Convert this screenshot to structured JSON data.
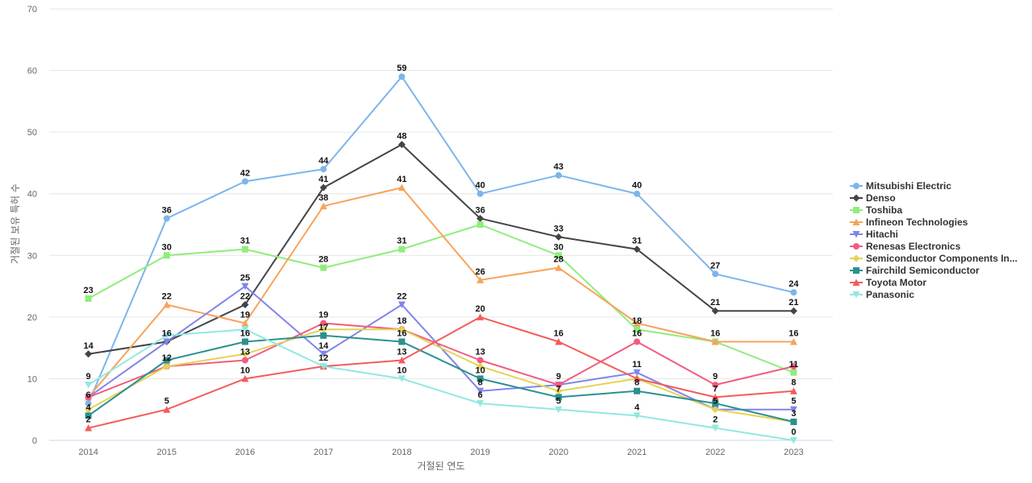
{
  "chart_data": {
    "type": "line",
    "title": "",
    "xlabel": "거절된 연도",
    "ylabel": "거절된 보유 특허 수",
    "x": [
      "2014",
      "2015",
      "2016",
      "2017",
      "2018",
      "2019",
      "2020",
      "2021",
      "2022",
      "2023"
    ],
    "ylim": [
      0,
      70
    ],
    "yticks": [
      0,
      10,
      20,
      30,
      40,
      50,
      60,
      70
    ],
    "grid": "horizontal",
    "legend_position": "right",
    "series": [
      {
        "name": "Mitsubishi Electric",
        "color": "#7cb5ec",
        "marker": "circle",
        "values": [
          6,
          36,
          42,
          44,
          59,
          40,
          43,
          40,
          27,
          24
        ]
      },
      {
        "name": "Denso",
        "color": "#434348",
        "marker": "diamond",
        "values": [
          14,
          16,
          22,
          41,
          48,
          36,
          33,
          31,
          21,
          21
        ]
      },
      {
        "name": "Toshiba",
        "color": "#90ed7d",
        "marker": "square",
        "values": [
          23,
          30,
          31,
          28,
          31,
          35,
          30,
          18,
          16,
          11
        ]
      },
      {
        "name": "Infineon Technologies",
        "color": "#f7a35c",
        "marker": "triangle",
        "values": [
          7,
          22,
          19,
          38,
          41,
          26,
          28,
          19,
          16,
          16
        ]
      },
      {
        "name": "Hitachi",
        "color": "#8085e9",
        "marker": "triangle-down",
        "values": [
          7,
          16,
          25,
          14,
          22,
          8,
          9,
          11,
          5,
          5
        ]
      },
      {
        "name": "Renesas Electronics",
        "color": "#f15c80",
        "marker": "circle",
        "values": [
          7,
          12,
          13,
          19,
          18,
          13,
          9,
          16,
          9,
          12
        ]
      },
      {
        "name": "Semiconductor Components In...",
        "color": "#e4d354",
        "marker": "diamond",
        "values": [
          5,
          12,
          14,
          18,
          18,
          12,
          8,
          10,
          5,
          3
        ]
      },
      {
        "name": "Fairchild Semiconductor",
        "color": "#2b908f",
        "marker": "square",
        "values": [
          4,
          13,
          16,
          17,
          16,
          10,
          7,
          8,
          6,
          3
        ]
      },
      {
        "name": "Toyota Motor",
        "color": "#f45b5b",
        "marker": "triangle",
        "values": [
          2,
          5,
          10,
          12,
          13,
          20,
          16,
          10,
          7,
          8
        ]
      },
      {
        "name": "Panasonic",
        "color": "#91e8e1",
        "marker": "triangle-down",
        "values": [
          9,
          17,
          18,
          12,
          10,
          6,
          5,
          4,
          2,
          0
        ]
      }
    ],
    "data_labels": [
      {
        "x": "2014",
        "text": "23",
        "value": 23
      },
      {
        "x": "2014",
        "text": "14",
        "value": 14
      },
      {
        "x": "2014",
        "text": "9",
        "value": 9
      },
      {
        "x": "2014",
        "text": "6",
        "value": 6
      },
      {
        "x": "2014",
        "text": "4",
        "value": 4
      },
      {
        "x": "2014",
        "text": "2",
        "value": 2
      },
      {
        "x": "2015",
        "text": "36",
        "value": 36
      },
      {
        "x": "2015",
        "text": "30",
        "value": 30
      },
      {
        "x": "2015",
        "text": "22",
        "value": 22
      },
      {
        "x": "2015",
        "text": "16",
        "value": 16
      },
      {
        "x": "2015",
        "text": "12",
        "value": 12
      },
      {
        "x": "2015",
        "text": "5",
        "value": 5
      },
      {
        "x": "2016",
        "text": "42",
        "value": 42
      },
      {
        "x": "2016",
        "text": "31",
        "value": 31
      },
      {
        "x": "2016",
        "text": "25",
        "value": 25
      },
      {
        "x": "2016",
        "text": "22",
        "value": 22
      },
      {
        "x": "2016",
        "text": "19",
        "value": 19
      },
      {
        "x": "2016",
        "text": "16",
        "value": 16
      },
      {
        "x": "2016",
        "text": "13",
        "value": 13
      },
      {
        "x": "2016",
        "text": "10",
        "value": 10
      },
      {
        "x": "2017",
        "text": "44",
        "value": 44
      },
      {
        "x": "2017",
        "text": "41",
        "value": 41
      },
      {
        "x": "2017",
        "text": "38",
        "value": 38
      },
      {
        "x": "2017",
        "text": "28",
        "value": 28
      },
      {
        "x": "2017",
        "text": "19",
        "value": 19
      },
      {
        "x": "2017",
        "text": "17",
        "value": 17
      },
      {
        "x": "2017",
        "text": "14",
        "value": 14
      },
      {
        "x": "2017",
        "text": "12",
        "value": 12
      },
      {
        "x": "2018",
        "text": "59",
        "value": 59
      },
      {
        "x": "2018",
        "text": "48",
        "value": 48
      },
      {
        "x": "2018",
        "text": "41",
        "value": 41
      },
      {
        "x": "2018",
        "text": "31",
        "value": 31
      },
      {
        "x": "2018",
        "text": "22",
        "value": 22
      },
      {
        "x": "2018",
        "text": "18",
        "value": 18
      },
      {
        "x": "2018",
        "text": "16",
        "value": 16
      },
      {
        "x": "2018",
        "text": "13",
        "value": 13
      },
      {
        "x": "2018",
        "text": "10",
        "value": 10
      },
      {
        "x": "2019",
        "text": "40",
        "value": 40
      },
      {
        "x": "2019",
        "text": "36",
        "value": 36
      },
      {
        "x": "2019",
        "text": "26",
        "value": 26
      },
      {
        "x": "2019",
        "text": "20",
        "value": 20
      },
      {
        "x": "2019",
        "text": "13",
        "value": 13
      },
      {
        "x": "2019",
        "text": "10",
        "value": 10
      },
      {
        "x": "2019",
        "text": "8",
        "value": 8
      },
      {
        "x": "2019",
        "text": "6",
        "value": 6
      },
      {
        "x": "2020",
        "text": "43",
        "value": 43
      },
      {
        "x": "2020",
        "text": "33",
        "value": 33
      },
      {
        "x": "2020",
        "text": "30",
        "value": 30
      },
      {
        "x": "2020",
        "text": "28",
        "value": 28
      },
      {
        "x": "2020",
        "text": "16",
        "value": 16
      },
      {
        "x": "2020",
        "text": "9",
        "value": 9
      },
      {
        "x": "2020",
        "text": "7",
        "value": 7
      },
      {
        "x": "2020",
        "text": "5",
        "value": 5
      },
      {
        "x": "2021",
        "text": "40",
        "value": 40
      },
      {
        "x": "2021",
        "text": "31",
        "value": 31
      },
      {
        "x": "2021",
        "text": "18",
        "value": 18
      },
      {
        "x": "2021",
        "text": "16",
        "value": 16
      },
      {
        "x": "2021",
        "text": "11",
        "value": 11
      },
      {
        "x": "2021",
        "text": "8",
        "value": 8
      },
      {
        "x": "2021",
        "text": "4",
        "value": 4
      },
      {
        "x": "2022",
        "text": "27",
        "value": 27
      },
      {
        "x": "2022",
        "text": "21",
        "value": 21
      },
      {
        "x": "2022",
        "text": "16",
        "value": 16
      },
      {
        "x": "2022",
        "text": "9",
        "value": 9
      },
      {
        "x": "2022",
        "text": "7",
        "value": 7
      },
      {
        "x": "2022",
        "text": "5",
        "value": 5
      },
      {
        "x": "2022",
        "text": "2",
        "value": 2
      },
      {
        "x": "2023",
        "text": "24",
        "value": 24
      },
      {
        "x": "2023",
        "text": "21",
        "value": 21
      },
      {
        "x": "2023",
        "text": "16",
        "value": 16
      },
      {
        "x": "2023",
        "text": "11",
        "value": 11
      },
      {
        "x": "2023",
        "text": "8",
        "value": 8
      },
      {
        "x": "2023",
        "text": "5",
        "value": 5
      },
      {
        "x": "2023",
        "text": "3",
        "value": 3
      },
      {
        "x": "2023",
        "text": "0",
        "value": 0
      }
    ]
  }
}
